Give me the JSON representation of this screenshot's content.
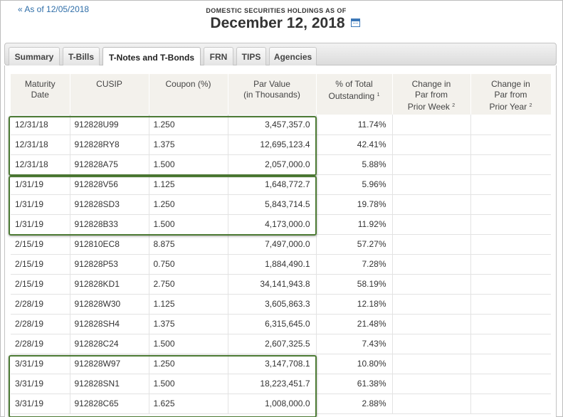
{
  "back_link": "« As of 12/05/2018",
  "header": {
    "subtitle": "DOMESTIC SECURITIES HOLDINGS AS OF",
    "date": "December 12, 2018"
  },
  "tabs": [
    {
      "label": "Summary",
      "active": false
    },
    {
      "label": "T-Bills",
      "active": false
    },
    {
      "label": "T-Notes and T-Bonds",
      "active": true
    },
    {
      "label": "FRN",
      "active": false
    },
    {
      "label": "TIPS",
      "active": false
    },
    {
      "label": "Agencies",
      "active": false
    }
  ],
  "table": {
    "columns": [
      {
        "line1": "Maturity",
        "line2": "Date",
        "line3": "",
        "sup": ""
      },
      {
        "line1": "CUSIP",
        "line2": "",
        "line3": "",
        "sup": ""
      },
      {
        "line1": "Coupon (%)",
        "line2": "",
        "line3": "",
        "sup": ""
      },
      {
        "line1": "Par Value",
        "line2": "(in Thousands)",
        "line3": "",
        "sup": ""
      },
      {
        "line1": "% of Total",
        "line2": "Outstanding",
        "line3": "",
        "sup": "1"
      },
      {
        "line1": "Change in",
        "line2": "Par from",
        "line3": "Prior Week",
        "sup": "2"
      },
      {
        "line1": "Change in",
        "line2": "Par from",
        "line3": "Prior Year",
        "sup": "2"
      }
    ],
    "rows": [
      [
        "12/31/18",
        "912828U99",
        "1.250",
        "3,457,357.0",
        "11.74%",
        "",
        ""
      ],
      [
        "12/31/18",
        "912828RY8",
        "1.375",
        "12,695,123.4",
        "42.41%",
        "",
        ""
      ],
      [
        "12/31/18",
        "912828A75",
        "1.500",
        "2,057,000.0",
        "5.88%",
        "",
        ""
      ],
      [
        "1/31/19",
        "912828V56",
        "1.125",
        "1,648,772.7",
        "5.96%",
        "",
        ""
      ],
      [
        "1/31/19",
        "912828SD3",
        "1.250",
        "5,843,714.5",
        "19.78%",
        "",
        ""
      ],
      [
        "1/31/19",
        "912828B33",
        "1.500",
        "4,173,000.0",
        "11.92%",
        "",
        ""
      ],
      [
        "2/15/19",
        "912810EC8",
        "8.875",
        "7,497,000.0",
        "57.27%",
        "",
        ""
      ],
      [
        "2/15/19",
        "912828P53",
        "0.750",
        "1,884,490.1",
        "7.28%",
        "",
        ""
      ],
      [
        "2/15/19",
        "912828KD1",
        "2.750",
        "34,141,943.8",
        "58.19%",
        "",
        ""
      ],
      [
        "2/28/19",
        "912828W30",
        "1.125",
        "3,605,863.3",
        "12.18%",
        "",
        ""
      ],
      [
        "2/28/19",
        "912828SH4",
        "1.375",
        "6,315,645.0",
        "21.48%",
        "",
        ""
      ],
      [
        "2/28/19",
        "912828C24",
        "1.500",
        "2,607,325.5",
        "7.43%",
        "",
        ""
      ],
      [
        "3/31/19",
        "912828W97",
        "1.250",
        "3,147,708.1",
        "10.80%",
        "",
        ""
      ],
      [
        "3/31/19",
        "912828SN1",
        "1.500",
        "18,223,451.7",
        "61.38%",
        "",
        ""
      ],
      [
        "3/31/19",
        "912828C65",
        "1.625",
        "1,008,000.0",
        "2.88%",
        "",
        ""
      ]
    ]
  },
  "colors": {
    "highlight_border": "#4c7a34",
    "link": "#2f6ea8",
    "header_bg": "#f3f1ec"
  },
  "icons": {
    "calendar": "calendar-icon"
  }
}
